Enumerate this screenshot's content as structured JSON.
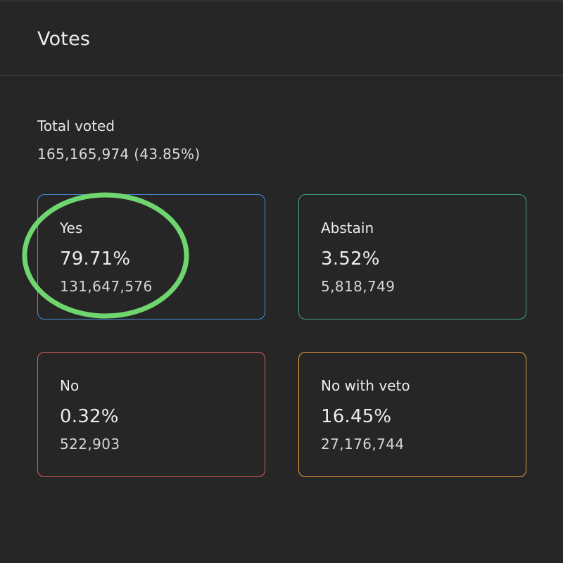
{
  "header": {
    "title": "Votes"
  },
  "summary": {
    "label": "Total voted",
    "value": "165,165,974 (43.85%)"
  },
  "options": [
    {
      "label": "Yes",
      "percent": "79.71%",
      "count": "131,647,576",
      "color": "#4a8fe0"
    },
    {
      "label": "Abstain",
      "percent": "3.52%",
      "count": "5,818,749",
      "color": "#3fa584"
    },
    {
      "label": "No",
      "percent": "0.32%",
      "count": "522,903",
      "color": "#e05a5a"
    },
    {
      "label": "No with veto",
      "percent": "16.45%",
      "count": "27,176,744",
      "color": "#eb9a3b"
    }
  ],
  "annotation": {
    "color": "#6fd66f"
  }
}
